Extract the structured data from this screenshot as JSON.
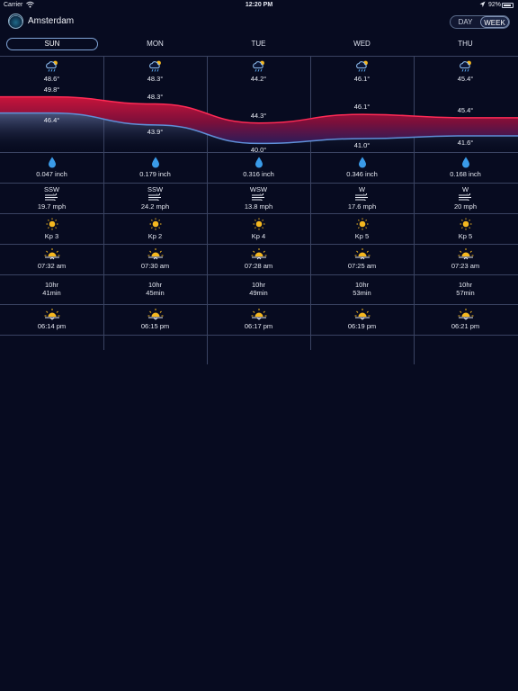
{
  "status_bar": {
    "carrier": "Carrier",
    "time": "12:20 PM",
    "battery": "92%",
    "battery_level": 0.92
  },
  "header": {
    "location": "Amsterdam",
    "segments": [
      "DAY",
      "WEEK"
    ],
    "selected_segment": "WEEK"
  },
  "days": [
    {
      "name": "SUN",
      "selected": true,
      "icon": "cloud-rain-sun-icon",
      "avg_temp": "48.6°",
      "high": "49.8°",
      "low": "46.4°",
      "precip": "0.047 inch",
      "wind_dir": "SSW",
      "wind_speed": "19.7 mph",
      "kp": "Kp 3",
      "sunrise": "07:32 am",
      "daylight_hr": "10hr",
      "daylight_min": "41min",
      "sunset": "06:14 pm"
    },
    {
      "name": "MON",
      "selected": false,
      "icon": "cloud-rain-sun-icon",
      "avg_temp": "48.3°",
      "high": "48.3°",
      "low": "43.9°",
      "precip": "0.179 inch",
      "wind_dir": "SSW",
      "wind_speed": "24.2 mph",
      "kp": "Kp 2",
      "sunrise": "07:30 am",
      "daylight_hr": "10hr",
      "daylight_min": "45min",
      "sunset": "06:15 pm"
    },
    {
      "name": "TUE",
      "selected": false,
      "icon": "cloud-rain-sun-icon",
      "avg_temp": "44.2°",
      "high": "44.3°",
      "low": "40.0°",
      "precip": "0.316 inch",
      "wind_dir": "WSW",
      "wind_speed": "13.8 mph",
      "kp": "Kp 4",
      "sunrise": "07:28 am",
      "daylight_hr": "10hr",
      "daylight_min": "49min",
      "sunset": "06:17 pm"
    },
    {
      "name": "WED",
      "selected": false,
      "icon": "cloud-rain-sun-icon",
      "avg_temp": "46.1°",
      "high": "46.1°",
      "low": "41.0°",
      "precip": "0.346 inch",
      "wind_dir": "W",
      "wind_speed": "17.6 mph",
      "kp": "Kp 5",
      "sunrise": "07:25 am",
      "daylight_hr": "10hr",
      "daylight_min": "53min",
      "sunset": "06:19 pm"
    },
    {
      "name": "THU",
      "selected": false,
      "icon": "cloud-rain-sun-icon",
      "avg_temp": "45.4°",
      "high": "45.4°",
      "low": "41.6°",
      "precip": "0.168 inch",
      "wind_dir": "W",
      "wind_speed": "20 mph",
      "kp": "Kp 5",
      "sunrise": "07:23 am",
      "daylight_hr": "10hr",
      "daylight_min": "57min",
      "sunset": "06:21 pm"
    }
  ],
  "row_icons": {
    "precip": "raindrop-icon",
    "wind": "wind-icon",
    "kp": "sun-icon",
    "sunrise": "sunrise-icon",
    "sunset": "sunset-icon"
  },
  "colors": {
    "background": "#070b20",
    "high_band": "#c8143a",
    "low_line": "#5f8fd8",
    "grid": "#3a4362",
    "raindrop": "#3a9be8",
    "sun": "#f5b820"
  },
  "chart_data": {
    "type": "area",
    "categories": [
      "SUN",
      "MON",
      "TUE",
      "WED",
      "THU"
    ],
    "series": [
      {
        "values": [
          49.8,
          48.3,
          44.3,
          46.1,
          45.4
        ]
      },
      {
        "values": [
          46.4,
          43.9,
          40.0,
          41.0,
          41.6
        ]
      }
    ],
    "ylim": [
      38,
      52
    ]
  }
}
